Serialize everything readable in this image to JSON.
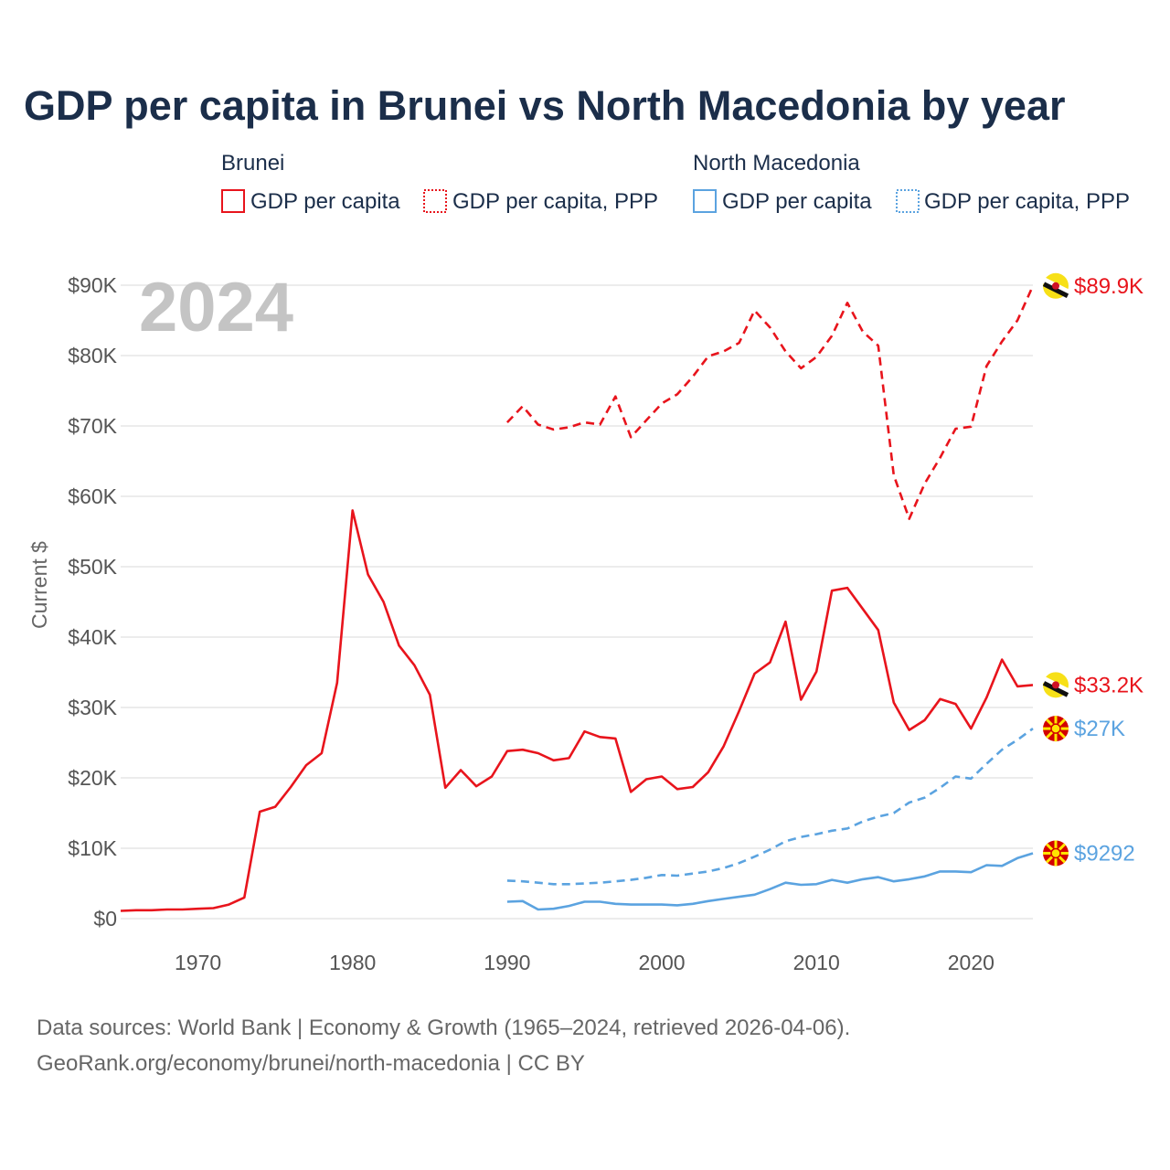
{
  "chart_data": {
    "type": "line",
    "title": "GDP per capita in Brunei vs North Macedonia by year",
    "ylabel": "Current $",
    "xlabel": "",
    "xlim": [
      1965,
      2024
    ],
    "ylim": [
      0,
      90000
    ],
    "year_label": "2024",
    "x_ticks": [
      {
        "value": 1970,
        "label": "1970"
      },
      {
        "value": 1980,
        "label": "1980"
      },
      {
        "value": 1990,
        "label": "1990"
      },
      {
        "value": 2000,
        "label": "2000"
      },
      {
        "value": 2010,
        "label": "2010"
      },
      {
        "value": 2020,
        "label": "2020"
      }
    ],
    "y_ticks": [
      {
        "value": 0,
        "label": "$0"
      },
      {
        "value": 10000,
        "label": "$10K"
      },
      {
        "value": 20000,
        "label": "$20K"
      },
      {
        "value": 30000,
        "label": "$30K"
      },
      {
        "value": 40000,
        "label": "$40K"
      },
      {
        "value": 50000,
        "label": "$50K"
      },
      {
        "value": 60000,
        "label": "$60K"
      },
      {
        "value": 70000,
        "label": "$70K"
      },
      {
        "value": 80000,
        "label": "$80K"
      },
      {
        "value": 90000,
        "label": "$90K"
      }
    ],
    "legend": [
      {
        "group": "Brunei",
        "items": [
          {
            "label": "GDP per capita",
            "color": "#e8141c",
            "style": "solid"
          },
          {
            "label": "GDP per capita, PPP",
            "color": "#e8141c",
            "style": "dotted"
          }
        ]
      },
      {
        "group": "North Macedonia",
        "items": [
          {
            "label": "GDP per capita",
            "color": "#5ba3e0",
            "style": "solid"
          },
          {
            "label": "GDP per capita, PPP",
            "color": "#5ba3e0",
            "style": "dotted"
          }
        ]
      }
    ],
    "series": [
      {
        "name": "Brunei GDP per capita",
        "country": "Brunei",
        "color": "#e8141c",
        "dash": "solid",
        "end_label": "$33.2K",
        "end_value": 33200,
        "x": [
          1965,
          1966,
          1967,
          1968,
          1969,
          1970,
          1971,
          1972,
          1973,
          1974,
          1975,
          1976,
          1977,
          1978,
          1979,
          1980,
          1981,
          1982,
          1983,
          1984,
          1985,
          1986,
          1987,
          1988,
          1989,
          1990,
          1991,
          1992,
          1993,
          1994,
          1995,
          1996,
          1997,
          1998,
          1999,
          2000,
          2001,
          2002,
          2003,
          2004,
          2005,
          2006,
          2007,
          2008,
          2009,
          2010,
          2011,
          2012,
          2013,
          2014,
          2015,
          2016,
          2017,
          2018,
          2019,
          2020,
          2021,
          2022,
          2023,
          2024
        ],
        "values": [
          1100,
          1200,
          1200,
          1300,
          1300,
          1400,
          1500,
          2000,
          3000,
          15200,
          15900,
          18700,
          21800,
          23500,
          33500,
          58000,
          48900,
          45000,
          38800,
          36000,
          31800,
          18600,
          21100,
          18800,
          20200,
          23800,
          24000,
          23500,
          22500,
          22800,
          26600,
          25800,
          25600,
          18000,
          19800,
          20200,
          18400,
          18700,
          20800,
          24500,
          29500,
          34800,
          36400,
          42200,
          31100,
          35100,
          46600,
          47000,
          44000,
          41000,
          30700,
          26800,
          28200,
          31200,
          30500,
          27000,
          31400,
          36800,
          33000,
          33200
        ]
      },
      {
        "name": "Brunei GDP per capita, PPP",
        "country": "Brunei",
        "color": "#e8141c",
        "dash": "dashed",
        "end_label": "$89.9K",
        "end_value": 89900,
        "x": [
          1990,
          1991,
          1992,
          1993,
          1994,
          1995,
          1996,
          1997,
          1998,
          1999,
          2000,
          2001,
          2002,
          2003,
          2004,
          2005,
          2006,
          2007,
          2008,
          2009,
          2010,
          2011,
          2012,
          2013,
          2014,
          2015,
          2016,
          2017,
          2018,
          2019,
          2020,
          2021,
          2022,
          2023,
          2024
        ],
        "values": [
          70500,
          72800,
          70200,
          69500,
          69800,
          70500,
          70200,
          74200,
          68400,
          70800,
          73200,
          74500,
          77000,
          79900,
          80600,
          81800,
          86400,
          84000,
          80600,
          78200,
          79800,
          82800,
          87500,
          83400,
          81400,
          63000,
          56800,
          61800,
          65500,
          69600,
          69900,
          78500,
          82000,
          85000,
          89900
        ]
      },
      {
        "name": "North Macedonia GDP per capita",
        "country": "North Macedonia",
        "color": "#5ba3e0",
        "dash": "solid",
        "end_label": "$9292",
        "end_value": 9292,
        "x": [
          1990,
          1991,
          1992,
          1993,
          1994,
          1995,
          1996,
          1997,
          1998,
          1999,
          2000,
          2001,
          2002,
          2003,
          2004,
          2005,
          2006,
          2007,
          2008,
          2009,
          2010,
          2011,
          2012,
          2013,
          2014,
          2015,
          2016,
          2017,
          2018,
          2019,
          2020,
          2021,
          2022,
          2023,
          2024
        ],
        "values": [
          2400,
          2500,
          1300,
          1400,
          1800,
          2400,
          2400,
          2100,
          2000,
          2000,
          2000,
          1900,
          2100,
          2500,
          2800,
          3100,
          3400,
          4200,
          5100,
          4800,
          4900,
          5500,
          5100,
          5600,
          5900,
          5300,
          5600,
          6000,
          6700,
          6700,
          6600,
          7600,
          7500,
          8600,
          9292
        ]
      },
      {
        "name": "North Macedonia GDP per capita, PPP",
        "country": "North Macedonia",
        "color": "#5ba3e0",
        "dash": "dashed",
        "end_label": "$27K",
        "end_value": 27000,
        "x": [
          1990,
          1991,
          1992,
          1993,
          1994,
          1995,
          1996,
          1997,
          1998,
          1999,
          2000,
          2001,
          2002,
          2003,
          2004,
          2005,
          2006,
          2007,
          2008,
          2009,
          2010,
          2011,
          2012,
          2013,
          2014,
          2015,
          2016,
          2017,
          2018,
          2019,
          2020,
          2021,
          2022,
          2023,
          2024
        ],
        "values": [
          5400,
          5300,
          5100,
          4900,
          4900,
          5000,
          5100,
          5300,
          5500,
          5800,
          6200,
          6100,
          6400,
          6700,
          7200,
          7900,
          8800,
          9800,
          11000,
          11600,
          12000,
          12500,
          12800,
          13800,
          14500,
          15000,
          16500,
          17200,
          18600,
          20200,
          19900,
          22000,
          24000,
          25400,
          27000
        ]
      }
    ]
  },
  "source": {
    "line1": "Data sources: World Bank | Economy & Growth (1965–2024, retrieved 2026-04-06).",
    "line2": "GeoRank.org/economy/brunei/north-macedonia | CC BY"
  }
}
